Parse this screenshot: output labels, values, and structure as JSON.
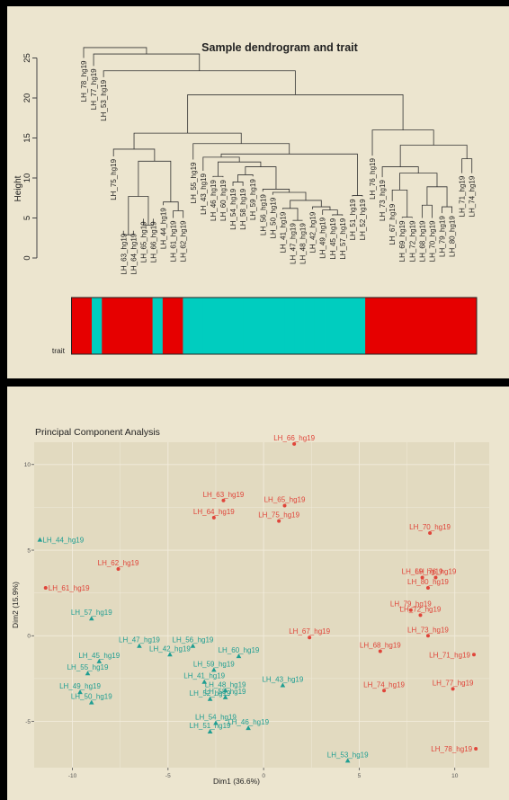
{
  "colors": {
    "panel_bg": "#ece5cf",
    "plot_bg": "#e2dac0",
    "grid": "#f2ecdc",
    "trait_red": "#e60000",
    "trait_cyan": "#00cdbf",
    "pca_red": "#e0453a",
    "pca_teal": "#1f9e92"
  },
  "chart_data": [
    {
      "type": "dendrogram",
      "title": "Sample dendrogram and trait",
      "ylabel": "Height",
      "ylim": [
        0,
        25
      ],
      "yticks": [
        "0",
        "5",
        "10",
        "15",
        "20",
        "25"
      ],
      "trait_label": "trait",
      "leaves": [
        {
          "name": "LH_78_hg19",
          "h": 25.0
        },
        {
          "name": "LH_77_hg19",
          "h": 24.0
        },
        {
          "name": "LH_53_hg19",
          "h": 22.6
        },
        {
          "name": "LH_75_hg19",
          "h": 12.7
        },
        {
          "name": "LH_63_hg19",
          "h": 3.4
        },
        {
          "name": "LH_64_hg19",
          "h": 3.4
        },
        {
          "name": "LH_65_hg19",
          "h": 4.9
        },
        {
          "name": "LH_66_hg19",
          "h": 4.9
        },
        {
          "name": "LH_44_hg19",
          "h": 6.6
        },
        {
          "name": "LH_61_hg19",
          "h": 5.0
        },
        {
          "name": "LH_62_hg19",
          "h": 5.0
        },
        {
          "name": "LH_55_hg19",
          "h": 12.3
        },
        {
          "name": "LH_43_hg19",
          "h": 10.9
        },
        {
          "name": "LH_46_hg19",
          "h": 10.1
        },
        {
          "name": "LH_60_hg19",
          "h": 10.1
        },
        {
          "name": "LH_54_hg19",
          "h": 9.0
        },
        {
          "name": "LH_58_hg19",
          "h": 9.0
        },
        {
          "name": "LH_59_hg19",
          "h": 10.2
        },
        {
          "name": "LH_56_hg19",
          "h": 8.3
        },
        {
          "name": "LH_50_hg19",
          "h": 7.9
        },
        {
          "name": "LH_41_hg19",
          "h": 6.1
        },
        {
          "name": "LH_47_hg19",
          "h": 4.7
        },
        {
          "name": "LH_48_hg19",
          "h": 4.7
        },
        {
          "name": "LH_42_hg19",
          "h": 6.1
        },
        {
          "name": "LH_49_hg19",
          "h": 5.4
        },
        {
          "name": "LH_45_hg19",
          "h": 5.3
        },
        {
          "name": "LH_57_hg19",
          "h": 5.3
        },
        {
          "name": "LH_51_hg19",
          "h": 7.7
        },
        {
          "name": "LH_52_hg19",
          "h": 7.7
        },
        {
          "name": "LH_76_hg19",
          "h": 12.8
        },
        {
          "name": "LH_73_hg19",
          "h": 10.1
        },
        {
          "name": "LH_67_hg19",
          "h": 7.1
        },
        {
          "name": "LH_69_hg19",
          "h": 5.0
        },
        {
          "name": "LH_72_hg19",
          "h": 5.0
        },
        {
          "name": "LH_68_hg19",
          "h": 5.0
        },
        {
          "name": "LH_70_hg19",
          "h": 5.0
        },
        {
          "name": "LH_79_hg19",
          "h": 5.6
        },
        {
          "name": "LH_80_hg19",
          "h": 5.6
        },
        {
          "name": "LH_71_hg19",
          "h": 10.6
        },
        {
          "name": "LH_74_hg19",
          "h": 10.6
        }
      ],
      "merges": [
        {
          "a": "LH_63_hg19",
          "b": "LH_64_hg19",
          "h": 2.9
        },
        {
          "a": "LH_65_hg19",
          "b": "LH_66_hg19",
          "h": 4.1
        },
        {
          "a": 0,
          "b": 1,
          "h": 7.7
        },
        {
          "a": "LH_61_hg19",
          "b": "LH_62_hg19",
          "h": 5.9
        },
        {
          "a": "LH_44_hg19",
          "b": 3,
          "h": 7.0
        },
        {
          "a": 2,
          "b": 4,
          "h": 12.1
        },
        {
          "a": "LH_75_hg19",
          "b": 5,
          "h": 13.6
        },
        {
          "a": "LH_47_hg19",
          "b": "LH_48_hg19",
          "h": 4.7
        },
        {
          "a": "LH_41_hg19",
          "b": 7,
          "h": 6.2
        },
        {
          "a": "LH_45_hg19",
          "b": "LH_57_hg19",
          "h": 5.4
        },
        {
          "a": "LH_49_hg19",
          "b": 9,
          "h": 6.0
        },
        {
          "a": "LH_42_hg19",
          "b": 10,
          "h": 6.4
        },
        {
          "a": 8,
          "b": 11,
          "h": 7.2
        },
        {
          "a": "LH_50_hg19",
          "b": 12,
          "h": 8.2
        },
        {
          "a": "LH_56_hg19",
          "b": 13,
          "h": 8.6
        },
        {
          "a": "LH_54_hg19",
          "b": "LH_58_hg19",
          "h": 9.5
        },
        {
          "a": 15,
          "b": "LH_59_hg19",
          "h": 10.4
        },
        {
          "a": 16,
          "b": 14,
          "h": 11.4
        },
        {
          "a": "LH_46_hg19",
          "b": "LH_60_hg19",
          "h": 10.2
        },
        {
          "a": 18,
          "b": 17,
          "h": 12.0
        },
        {
          "a": "LH_43_hg19",
          "b": 19,
          "h": 12.6
        },
        {
          "a": "LH_51_hg19",
          "b": "LH_52_hg19",
          "h": 7.8
        },
        {
          "a": 20,
          "b": 21,
          "h": 13.0
        },
        {
          "a": "LH_55_hg19",
          "b": 22,
          "h": 14.3
        },
        {
          "a": 6,
          "b": 23,
          "h": 15.6
        },
        {
          "a": "LH_69_hg19",
          "b": "LH_72_hg19",
          "h": 5.1
        },
        {
          "a": "LH_67_hg19",
          "b": 25,
          "h": 8.5
        },
        {
          "a": "LH_68_hg19",
          "b": "LH_70_hg19",
          "h": 6.6
        },
        {
          "a": "LH_79_hg19",
          "b": "LH_80_hg19",
          "h": 6.4
        },
        {
          "a": 27,
          "b": 28,
          "h": 8.9
        },
        {
          "a": 26,
          "b": 29,
          "h": 10.6
        },
        {
          "a": "LH_73_hg19",
          "b": 30,
          "h": 11.4
        },
        {
          "a": "LH_71_hg19",
          "b": "LH_74_hg19",
          "h": 12.4
        },
        {
          "a": 31,
          "b": 32,
          "h": 14.1
        },
        {
          "a": "LH_76_hg19",
          "b": 33,
          "h": 16.0
        },
        {
          "a": 24,
          "b": 34,
          "h": 20.4
        },
        {
          "a": "LH_53_hg19",
          "b": 35,
          "h": 23.4
        },
        {
          "a": "LH_77_hg19",
          "b": 36,
          "h": 25.5
        },
        {
          "a": "LH_78_hg19",
          "b": 37,
          "h": 26.3
        }
      ],
      "trait": [
        "red",
        "red",
        "cyan",
        "red",
        "red",
        "red",
        "red",
        "red",
        "cyan",
        "red",
        "red",
        "cyan",
        "cyan",
        "cyan",
        "cyan",
        "cyan",
        "cyan",
        "cyan",
        "cyan",
        "cyan",
        "cyan",
        "cyan",
        "cyan",
        "cyan",
        "cyan",
        "cyan",
        "cyan",
        "cyan",
        "cyan",
        "red",
        "red",
        "red",
        "red",
        "red",
        "red",
        "red",
        "red",
        "red",
        "red",
        "red"
      ]
    },
    {
      "type": "scatter",
      "title": "Principal Component Analysis",
      "xlabel": "Dim1 (36.6%)",
      "ylabel": "Dim2 (15.9%)",
      "xlim": [
        -12,
        11.8
      ],
      "ylim": [
        -7.7,
        11.3
      ],
      "xticks": [
        "-10",
        "-5",
        "0",
        "5",
        "10"
      ],
      "yticks": [
        "-5",
        "0",
        "5",
        "10"
      ],
      "series": [
        {
          "marker": "circle",
          "points": [
            {
              "label": "LH_66_hg19",
              "x": 1.6,
              "y": 11.2
            },
            {
              "label": "LH_63_hg19",
              "x": -2.1,
              "y": 7.9
            },
            {
              "label": "LH_65_hg19",
              "x": 1.1,
              "y": 7.6
            },
            {
              "label": "LH_64_hg19",
              "x": -2.6,
              "y": 6.9
            },
            {
              "label": "LH_75_hg19",
              "x": 0.8,
              "y": 6.7
            },
            {
              "label": "LH_70_hg19",
              "x": 8.7,
              "y": 6.0
            },
            {
              "label": "LH_62_hg19",
              "x": -7.6,
              "y": 3.9
            },
            {
              "label": "LH_69_hg19",
              "x": 8.3,
              "y": 3.4
            },
            {
              "label": "LH_76_hg19",
              "x": 9.0,
              "y": 3.4
            },
            {
              "label": "LH_61_hg19",
              "x": -11.4,
              "y": 2.8
            },
            {
              "label": "LH_80_hg19",
              "x": 8.6,
              "y": 2.8
            },
            {
              "label": "LH_79_hg19",
              "x": 7.7,
              "y": 1.5
            },
            {
              "label": "LH_72_hg19",
              "x": 8.2,
              "y": 1.2
            },
            {
              "label": "LH_73_hg19",
              "x": 8.6,
              "y": 0.0
            },
            {
              "label": "LH_67_hg19",
              "x": 2.4,
              "y": -0.1
            },
            {
              "label": "LH_68_hg19",
              "x": 6.1,
              "y": -0.9
            },
            {
              "label": "LH_71_hg19",
              "x": 11.0,
              "y": -1.1
            },
            {
              "label": "LH_74_hg19",
              "x": 6.3,
              "y": -3.2
            },
            {
              "label": "LH_77_hg19",
              "x": 9.9,
              "y": -3.1
            },
            {
              "label": "LH_78_hg19",
              "x": 11.1,
              "y": -6.6
            }
          ]
        },
        {
          "marker": "triangle",
          "points": [
            {
              "label": "LH_44_hg19",
              "x": -11.7,
              "y": 5.6
            },
            {
              "label": "LH_57_hg19",
              "x": -9.0,
              "y": 1.0
            },
            {
              "label": "LH_47_hg19",
              "x": -6.5,
              "y": -0.6
            },
            {
              "label": "LH_56_hg19",
              "x": -3.7,
              "y": -0.6
            },
            {
              "label": "LH_45_hg19",
              "x": -8.6,
              "y": -1.5
            },
            {
              "label": "LH_42_hg19",
              "x": -4.9,
              "y": -1.1
            },
            {
              "label": "LH_55_hg19",
              "x": -9.2,
              "y": -2.2
            },
            {
              "label": "LH_60_hg19",
              "x": -1.3,
              "y": -1.2
            },
            {
              "label": "LH_59_hg19",
              "x": -2.6,
              "y": -2.0
            },
            {
              "label": "LH_41_hg19",
              "x": -3.1,
              "y": -2.7
            },
            {
              "label": "LH_49_hg19",
              "x": -9.6,
              "y": -3.3
            },
            {
              "label": "LH_48_hg19",
              "x": -2.0,
              "y": -3.2
            },
            {
              "label": "LH_43_hg19",
              "x": 1.0,
              "y": -2.9
            },
            {
              "label": "LH_52_hg19",
              "x": -2.8,
              "y": -3.7
            },
            {
              "label": "LH_58_hg19",
              "x": -2.0,
              "y": -3.6
            },
            {
              "label": "LH_50_hg19",
              "x": -9.0,
              "y": -3.9
            },
            {
              "label": "LH_54_hg19",
              "x": -2.5,
              "y": -5.1
            },
            {
              "label": "LH_46_hg19",
              "x": -0.8,
              "y": -5.4
            },
            {
              "label": "LH_51_hg19",
              "x": -2.8,
              "y": -5.6
            },
            {
              "label": "LH_53_hg19",
              "x": 4.4,
              "y": -7.3
            }
          ]
        }
      ]
    }
  ]
}
